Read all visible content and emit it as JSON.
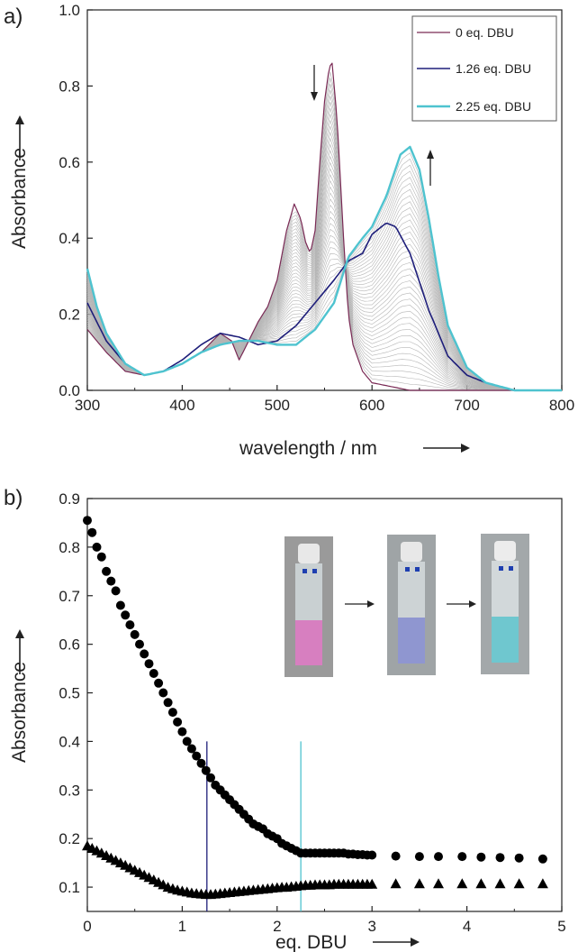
{
  "chart_data": [
    {
      "panel": "a)",
      "type": "line",
      "xlabel": "wavelength / nm",
      "ylabel": "Absorbance",
      "xlim": [
        300,
        800
      ],
      "ylim": [
        0,
        1.0
      ],
      "xticks": [
        "300",
        "400",
        "500",
        "600",
        "700",
        "800"
      ],
      "yticks": [
        "0.0",
        "0.2",
        "0.4",
        "0.6",
        "0.8",
        "1.0"
      ],
      "grid": false,
      "legend_position": "top-right",
      "colors": {
        "start": "#7a2a55",
        "mid": "#1e1e7a",
        "end": "#4ec3cf",
        "intermediate": "#b5b5b5"
      },
      "intermediate_curves": 40,
      "series": [
        {
          "name": "0 eq. DBU",
          "x": [
            300,
            320,
            340,
            360,
            380,
            400,
            420,
            440,
            452,
            460,
            470,
            480,
            490,
            500,
            510,
            518,
            525,
            530,
            535,
            540,
            545,
            550,
            555,
            558,
            563,
            570,
            575,
            580,
            590,
            600,
            620,
            640,
            660,
            700,
            800
          ],
          "y": [
            0.16,
            0.1,
            0.05,
            0.04,
            0.05,
            0.07,
            0.1,
            0.15,
            0.13,
            0.08,
            0.13,
            0.18,
            0.22,
            0.29,
            0.42,
            0.49,
            0.45,
            0.39,
            0.36,
            0.42,
            0.6,
            0.76,
            0.85,
            0.86,
            0.72,
            0.4,
            0.2,
            0.12,
            0.05,
            0.02,
            0.01,
            0.0,
            0.0,
            0.0,
            0.0
          ]
        },
        {
          "name": "1.26 eq. DBU",
          "x": [
            300,
            320,
            340,
            360,
            380,
            400,
            420,
            440,
            460,
            480,
            500,
            520,
            540,
            560,
            575,
            590,
            600,
            615,
            625,
            640,
            660,
            680,
            700,
            720,
            750,
            800
          ],
          "y": [
            0.23,
            0.13,
            0.07,
            0.04,
            0.05,
            0.08,
            0.12,
            0.15,
            0.14,
            0.12,
            0.13,
            0.17,
            0.23,
            0.29,
            0.34,
            0.36,
            0.41,
            0.44,
            0.43,
            0.36,
            0.21,
            0.09,
            0.04,
            0.02,
            0.0,
            0.0
          ]
        },
        {
          "name": "2.25 eq. DBU",
          "x": [
            300,
            310,
            320,
            340,
            360,
            380,
            400,
            420,
            440,
            460,
            480,
            500,
            520,
            540,
            560,
            575,
            590,
            600,
            615,
            630,
            640,
            650,
            660,
            670,
            680,
            700,
            720,
            750,
            800
          ],
          "y": [
            0.32,
            0.22,
            0.15,
            0.07,
            0.04,
            0.05,
            0.07,
            0.1,
            0.12,
            0.13,
            0.13,
            0.12,
            0.12,
            0.16,
            0.23,
            0.35,
            0.4,
            0.43,
            0.51,
            0.62,
            0.64,
            0.58,
            0.45,
            0.3,
            0.17,
            0.06,
            0.02,
            0.0,
            0.0
          ]
        }
      ],
      "annotations": [
        {
          "text": "↓",
          "at_x": 548,
          "at_y": 0.85
        },
        {
          "text": "↑",
          "at_x": 660,
          "at_y": 0.6
        }
      ]
    },
    {
      "panel": "b)",
      "type": "scatter",
      "xlabel": "eq. DBU",
      "ylabel": "Absorbance",
      "xlim": [
        0,
        5
      ],
      "ylim": [
        0.05,
        0.9
      ],
      "xticks": [
        "0",
        "1",
        "2",
        "3",
        "4",
        "5"
      ],
      "yticks": [
        "0.1",
        "0.2",
        "0.3",
        "0.4",
        "0.5",
        "0.6",
        "0.7",
        "0.8",
        "0.9"
      ],
      "grid": false,
      "vlines": [
        {
          "x": 1.26,
          "color": "#1e1e7a",
          "ymax": 0.4
        },
        {
          "x": 2.25,
          "color": "#4ec3cf",
          "ymax": 0.4
        }
      ],
      "series": [
        {
          "marker": "circle",
          "x": [
            0,
            0.05,
            0.1,
            0.15,
            0.2,
            0.25,
            0.3,
            0.35,
            0.4,
            0.45,
            0.5,
            0.55,
            0.6,
            0.65,
            0.7,
            0.75,
            0.8,
            0.85,
            0.9,
            0.95,
            1.0,
            1.05,
            1.1,
            1.15,
            1.2,
            1.25,
            1.3,
            1.35,
            1.4,
            1.45,
            1.5,
            1.55,
            1.6,
            1.65,
            1.7,
            1.75,
            1.8,
            1.85,
            1.9,
            1.95,
            2.0,
            2.05,
            2.1,
            2.15,
            2.2,
            2.25,
            2.3,
            2.35,
            2.4,
            2.45,
            2.5,
            2.55,
            2.6,
            2.65,
            2.7,
            2.75,
            2.8,
            2.85,
            2.9,
            2.95,
            3.0,
            3.25,
            3.5,
            3.7,
            3.95,
            4.15,
            4.35,
            4.55,
            4.8
          ],
          "y": [
            0.855,
            0.83,
            0.8,
            0.78,
            0.75,
            0.73,
            0.71,
            0.68,
            0.66,
            0.64,
            0.62,
            0.6,
            0.58,
            0.56,
            0.54,
            0.52,
            0.5,
            0.48,
            0.46,
            0.44,
            0.42,
            0.4,
            0.385,
            0.37,
            0.355,
            0.34,
            0.325,
            0.31,
            0.3,
            0.29,
            0.28,
            0.27,
            0.26,
            0.25,
            0.24,
            0.23,
            0.225,
            0.22,
            0.21,
            0.205,
            0.2,
            0.19,
            0.185,
            0.18,
            0.175,
            0.17,
            0.17,
            0.17,
            0.17,
            0.17,
            0.17,
            0.17,
            0.17,
            0.17,
            0.17,
            0.168,
            0.168,
            0.167,
            0.167,
            0.166,
            0.166,
            0.164,
            0.163,
            0.163,
            0.163,
            0.162,
            0.161,
            0.16,
            0.158
          ]
        },
        {
          "marker": "triangle",
          "x": [
            0,
            0.05,
            0.1,
            0.15,
            0.2,
            0.25,
            0.3,
            0.35,
            0.4,
            0.45,
            0.5,
            0.55,
            0.6,
            0.65,
            0.7,
            0.75,
            0.8,
            0.85,
            0.9,
            0.95,
            1.0,
            1.05,
            1.1,
            1.15,
            1.2,
            1.25,
            1.3,
            1.35,
            1.4,
            1.45,
            1.5,
            1.55,
            1.6,
            1.65,
            1.7,
            1.75,
            1.8,
            1.85,
            1.9,
            1.95,
            2.0,
            2.05,
            2.1,
            2.15,
            2.2,
            2.25,
            2.3,
            2.35,
            2.4,
            2.45,
            2.5,
            2.55,
            2.6,
            2.65,
            2.7,
            2.75,
            2.8,
            2.85,
            2.9,
            2.95,
            3.0,
            3.25,
            3.5,
            3.7,
            3.95,
            4.15,
            4.35,
            4.55,
            4.8
          ],
          "y": [
            0.185,
            0.18,
            0.175,
            0.17,
            0.165,
            0.16,
            0.155,
            0.15,
            0.145,
            0.14,
            0.135,
            0.13,
            0.125,
            0.12,
            0.115,
            0.11,
            0.105,
            0.1,
            0.097,
            0.094,
            0.092,
            0.09,
            0.088,
            0.087,
            0.086,
            0.085,
            0.085,
            0.086,
            0.087,
            0.088,
            0.089,
            0.09,
            0.091,
            0.092,
            0.093,
            0.094,
            0.095,
            0.096,
            0.097,
            0.098,
            0.099,
            0.1,
            0.1,
            0.101,
            0.102,
            0.103,
            0.104,
            0.104,
            0.105,
            0.105,
            0.105,
            0.105,
            0.106,
            0.106,
            0.106,
            0.106,
            0.106,
            0.106,
            0.106,
            0.106,
            0.106,
            0.107,
            0.107,
            0.107,
            0.107,
            0.107,
            0.107,
            0.107,
            0.107
          ]
        }
      ],
      "inset": {
        "description": "three cuvettes",
        "cuvettes": [
          {
            "solution_color": "#d77fc0"
          },
          {
            "solution_color": "#8f96d0"
          },
          {
            "solution_color": "#6fc7cf"
          }
        ]
      }
    }
  ]
}
